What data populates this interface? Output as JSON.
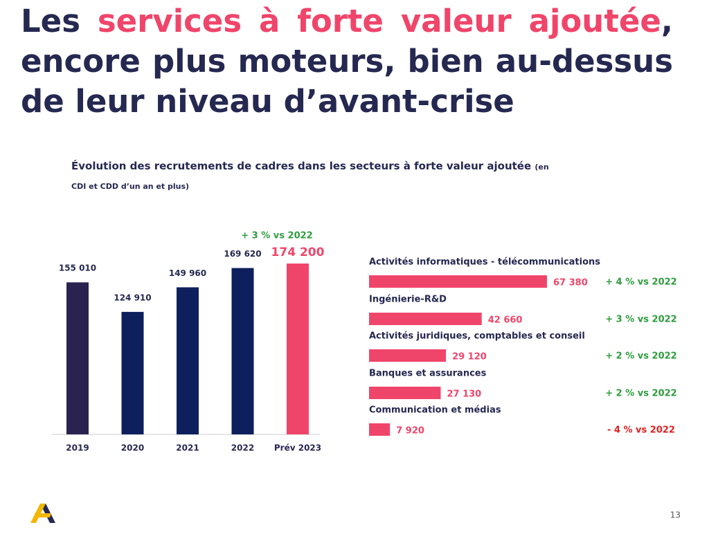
{
  "slide": {
    "title": [
      {
        "text": "Les ",
        "color": "#252850"
      },
      {
        "text": "services à forte valeur ajoutée",
        "color": "#f0456a"
      },
      {
        "text": ", encore plus moteurs, bien au-dessus de leur niveau d’avant-crise",
        "color": "#252850"
      }
    ],
    "chart_title": "Évolution des recrutements de cadres dans les secteurs à forte valeur ajoutée",
    "chart_note": "(en CDI et CDD d’un an et plus)",
    "page_number": "13"
  },
  "chart_data": [
    {
      "type": "bar",
      "categories": [
        "2019",
        "2020",
        "2021",
        "2022",
        "Prév  2023"
      ],
      "values": [
        155010,
        124910,
        149960,
        169620,
        174200
      ],
      "value_labels": [
        "155 010",
        "124 910",
        "149 960",
        "169 620",
        "174 200"
      ],
      "colors": [
        "#2a2350",
        "#0d1f5c",
        "#0d1f5c",
        "#0d1f5c",
        "#f0456a"
      ],
      "annotations": [
        {
          "text": "+ 3 % vs 2022",
          "color": "#2e9e3e"
        }
      ]
    },
    {
      "type": "hbar",
      "categories": [
        "Activités informatiques - télécommunications",
        "Ingénierie-R&D",
        "Activités juridiques, comptables et conseil",
        "Banques et assurances",
        "Communication et médias"
      ],
      "values": [
        67380,
        42660,
        29120,
        27130,
        7920
      ],
      "value_labels": [
        "67 380",
        "42 660",
        "29 120",
        "27 130",
        "7 920"
      ],
      "color": "#f0456a",
      "annotations": [
        {
          "text": "+ 4 % vs 2022",
          "color": "#2e9e3e"
        },
        {
          "text": "+ 3 % vs 2022",
          "color": "#2e9e3e"
        },
        {
          "text": "+ 2 % vs 2022",
          "color": "#2e9e3e"
        },
        {
          "text": "+ 2 % vs 2022",
          "color": "#2e9e3e"
        },
        {
          "text": "- 4 % vs 2022",
          "color": "#e02020"
        }
      ]
    }
  ]
}
